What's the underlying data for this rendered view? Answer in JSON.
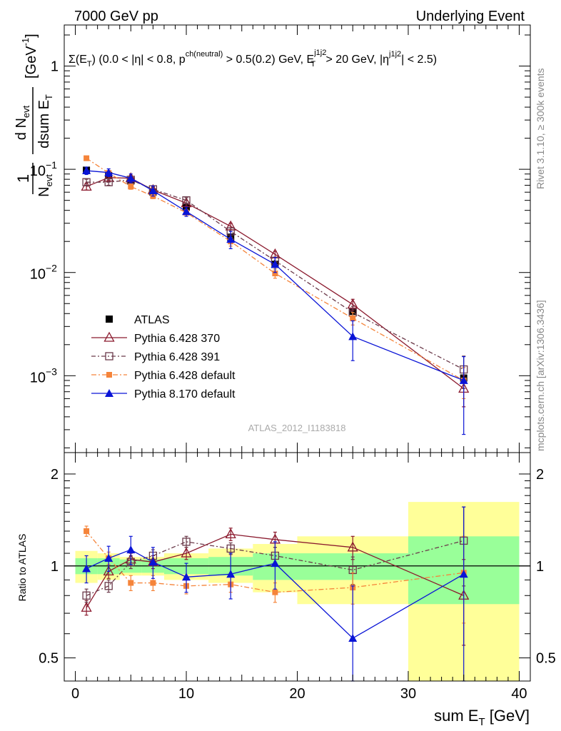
{
  "header": {
    "left": "7000 GeV pp",
    "right": "Underlying Event"
  },
  "side_text": {
    "rivet": "Rivet 3.1.10, ≥ 300k events",
    "mcplots": "mcplots.cern.ch [arXiv:1306.3436]"
  },
  "watermark": "ATLAS_2012_I1183818",
  "cut_label": {
    "sigma": "Σ(E",
    "t": "T",
    "p1": ") (0.0 < |η| < 0.8, p",
    "sup_ch": "ch(neutral)",
    "p2": " > 0.5(0.2) GeV, E",
    "sup_j": "j1j2",
    "sub_t": "T",
    "p3": " > 20 GeV, |η",
    "sup_j2": "j1j2",
    "p4": "| < 2.5)"
  },
  "y_title": {
    "frac_top": "1",
    "frac_bot": "N",
    "frac_bot_sub": "evt",
    "d": "d N",
    "d_sub": "evt",
    "dsum": "dsum E",
    "dsum_sub": "T",
    "unit": "[GeV",
    "unit_sup": "-1",
    "unit_close": "]"
  },
  "ratio_ylabel": "Ratio to ATLAS",
  "x_title": {
    "main": "sum E",
    "sub": "T",
    "unit": " [GeV]"
  },
  "legend": [
    {
      "label": "ATLAS"
    },
    {
      "label": "Pythia 6.428 370"
    },
    {
      "label": "Pythia 6.428 391"
    },
    {
      "label": "Pythia 6.428 default"
    },
    {
      "label": "Pythia 8.170 default"
    }
  ],
  "colors": {
    "atlas": "#000000",
    "p370": "#8b1a2e",
    "p391": "#6b3a4a",
    "pdef": "#f5843a",
    "p8": "#0a14d6",
    "band_inner": "#99ff99",
    "band_outer": "#ffff99"
  },
  "chart_data": [
    {
      "type": "scatter",
      "panel": "main",
      "xlim": [
        -1,
        41
      ],
      "ylim": [
        0.00018,
        2.5
      ],
      "yscale": "log",
      "x_ticks": [
        0,
        10,
        20,
        30,
        40
      ],
      "y_ticks": [
        {
          "v": 1,
          "label": "1"
        },
        {
          "v": 0.1,
          "base": "10",
          "exp": "−1"
        },
        {
          "v": 0.01,
          "base": "10",
          "exp": "−2"
        },
        {
          "v": 0.001,
          "base": "10",
          "exp": "−3"
        }
      ],
      "x": [
        1,
        3,
        5,
        7,
        10,
        14,
        18,
        25,
        35
      ],
      "x_edges": [
        0,
        2,
        4,
        6,
        8,
        12,
        16,
        20,
        30,
        40
      ],
      "series": [
        {
          "name": "ATLAS",
          "key": "atlas",
          "values": [
            0.098,
            0.087,
            0.077,
            0.06,
            0.043,
            0.022,
            0.012,
            0.0042,
            0.00095
          ]
        },
        {
          "name": "Pythia 6.428 370",
          "key": "p370",
          "values": [
            0.068,
            0.083,
            0.082,
            0.063,
            0.047,
            0.028,
            0.015,
            0.0049,
            0.00075
          ],
          "err": [
            0.005,
            0.005,
            0.005,
            0.004,
            0.003,
            0.002,
            0.001,
            0.0006,
            0.00025
          ]
        },
        {
          "name": "Pythia 6.428 391",
          "key": "p391",
          "values": [
            0.075,
            0.075,
            0.079,
            0.064,
            0.05,
            0.025,
            0.013,
            0.0041,
            0.00115
          ],
          "err": [
            0.005,
            0.005,
            0.005,
            0.004,
            0.003,
            0.002,
            0.001,
            0.0006,
            0.0004
          ]
        },
        {
          "name": "Pythia 6.428 default",
          "key": "pdef",
          "values": [
            0.128,
            0.092,
            0.068,
            0.055,
            0.038,
            0.02,
            0.0098,
            0.0036,
            0.0009
          ],
          "err": [
            0.006,
            0.005,
            0.004,
            0.003,
            0.003,
            0.002,
            0.001,
            0.0005,
            0.0003
          ]
        },
        {
          "name": "Pythia 8.170 default",
          "key": "p8",
          "values": [
            0.097,
            0.093,
            0.082,
            0.062,
            0.039,
            0.021,
            0.012,
            0.0024,
            0.0009
          ],
          "err": [
            0.008,
            0.008,
            0.008,
            0.007,
            0.004,
            0.004,
            0.002,
            0.001,
            0.00063
          ]
        }
      ]
    },
    {
      "type": "scatter",
      "panel": "ratio",
      "xlim": [
        -1,
        41
      ],
      "ylim": [
        0.42,
        2.35
      ],
      "yscale": "log",
      "x_ticks": [
        0,
        10,
        20,
        30,
        40
      ],
      "y_ticks": [
        {
          "v": 2,
          "label": "2"
        },
        {
          "v": 1,
          "label": "1"
        },
        {
          "v": 0.5,
          "label": "0.5"
        }
      ],
      "x": [
        1,
        3,
        5,
        7,
        10,
        14,
        18,
        25,
        35
      ],
      "x_edges": [
        0,
        2,
        4,
        6,
        8,
        12,
        16,
        20,
        30,
        40
      ],
      "band_inner": [
        [
          0.94,
          1.06
        ],
        [
          0.94,
          1.06
        ],
        [
          0.95,
          1.05
        ],
        [
          0.95,
          1.05
        ],
        [
          0.94,
          1.06
        ],
        [
          0.93,
          1.07
        ],
        [
          0.9,
          1.1
        ],
        [
          0.9,
          1.1
        ],
        [
          0.75,
          1.25
        ]
      ],
      "band_outer": [
        [
          0.88,
          1.12
        ],
        [
          0.9,
          1.1
        ],
        [
          0.93,
          1.07
        ],
        [
          0.93,
          1.07
        ],
        [
          0.9,
          1.1
        ],
        [
          0.88,
          1.14
        ],
        [
          0.82,
          1.18
        ],
        [
          0.75,
          1.25
        ],
        [
          0.38,
          1.62
        ]
      ],
      "series": [
        {
          "name": "Pythia 6.428 370",
          "key": "p370",
          "values": [
            0.73,
            0.96,
            1.05,
            1.03,
            1.1,
            1.27,
            1.22,
            1.15,
            0.8
          ],
          "err": [
            0.04,
            0.05,
            0.05,
            0.05,
            0.05,
            0.06,
            0.07,
            0.1,
            0.25
          ]
        },
        {
          "name": "Pythia 6.428 391",
          "key": "p391",
          "values": [
            0.8,
            0.86,
            1.03,
            1.08,
            1.2,
            1.14,
            1.08,
            0.97,
            1.21
          ],
          "err": [
            0.04,
            0.04,
            0.05,
            0.05,
            0.05,
            0.05,
            0.07,
            0.1,
            0.35
          ]
        },
        {
          "name": "Pythia 6.428 default",
          "key": "pdef",
          "values": [
            1.3,
            1.06,
            0.88,
            0.88,
            0.86,
            0.87,
            0.82,
            0.85,
            0.95
          ],
          "err": [
            0.05,
            0.05,
            0.05,
            0.05,
            0.05,
            0.05,
            0.06,
            0.1,
            0.3
          ]
        },
        {
          "name": "Pythia 8.170 default",
          "key": "p8",
          "values": [
            0.98,
            1.06,
            1.13,
            1.03,
            0.92,
            0.94,
            1.02,
            0.58,
            0.94
          ],
          "err": [
            0.1,
            0.1,
            0.12,
            0.12,
            0.1,
            0.16,
            0.18,
            0.28,
            0.62
          ]
        }
      ]
    }
  ]
}
